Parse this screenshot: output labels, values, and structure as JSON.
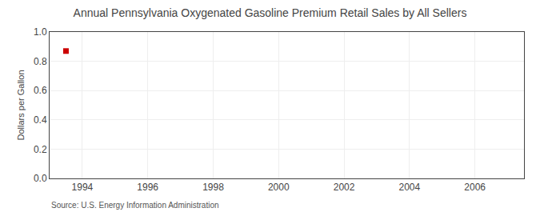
{
  "chart_data": {
    "type": "scatter",
    "title": "Annual Pennsylvania Oxygenated Gasoline Premium Retail Sales by All Sellers",
    "ylabel": "Dollars per Gallon",
    "annotations": [
      "Source: U.S. Energy Information Administration"
    ],
    "x": [
      1993.5
    ],
    "values": [
      0.87
    ],
    "color": "#cc0000",
    "marker": "square",
    "xlim": [
      1993.0,
      2007.5
    ],
    "xticks": [
      1994,
      1996,
      1998,
      2000,
      2002,
      2004,
      2006
    ],
    "ylim": [
      0.0,
      1.0
    ],
    "yticks": [
      {
        "value": 0,
        "label": "0.0"
      },
      0.2,
      0.4,
      0.6,
      0.8,
      {
        "value": 1,
        "label": "1.0"
      }
    ],
    "grid": true
  }
}
